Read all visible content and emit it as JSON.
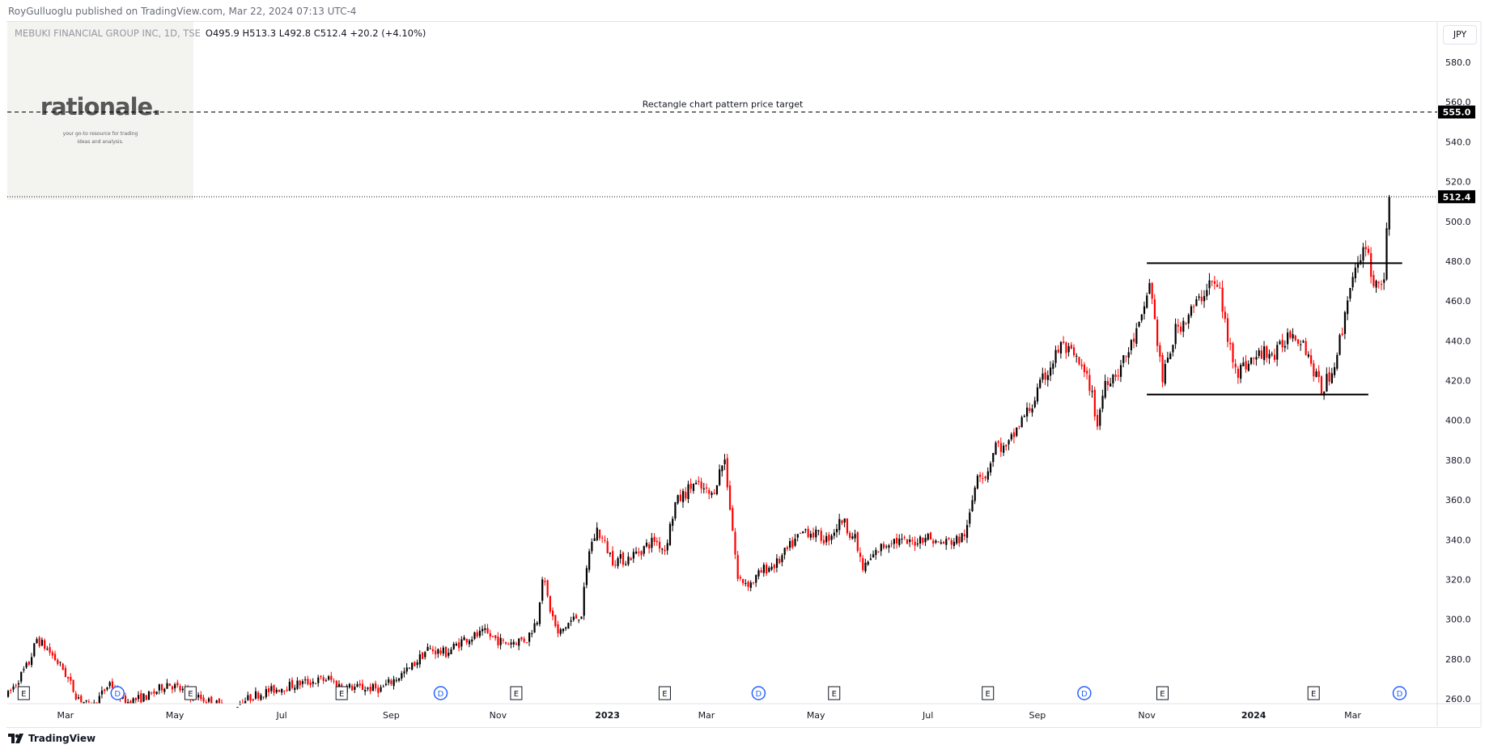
{
  "publisher": "RoyGulluoglu published on TradingView.com, Mar 22, 2024 07:13 UTC-4",
  "legend": {
    "symbol": "MEBUKI FINANCIAL GROUP INC, 1D, TSE",
    "ohlc": "O495.9  H513.3  L492.8  C512.4  +20.2 (+4.10%)"
  },
  "logo": {
    "name": "rationale.",
    "tagline1": "your go-to resource for trading",
    "tagline2": "ideas and analysis."
  },
  "currency": "JPY",
  "footer": {
    "brand": "TradingView",
    "icon": "tradingview-logo-icon"
  },
  "colors": {
    "up": "#000000",
    "down": "#ff0000",
    "annotation": "#000000"
  },
  "chart_data": {
    "type": "candlestick",
    "title": "MEBUKI FINANCIAL GROUP INC, 1D, TSE",
    "ylabel": "JPY",
    "ylim": [
      260,
      580
    ],
    "y_ticks": [
      "580.0",
      "560.0",
      "540.0",
      "520.0",
      "500.0",
      "480.0",
      "460.0",
      "440.0",
      "420.0",
      "400.0",
      "380.0",
      "360.0",
      "340.0",
      "320.0",
      "300.0",
      "280.0",
      "260.0"
    ],
    "x_ticks": [
      {
        "label": "Mar",
        "day": 22
      },
      {
        "label": "May",
        "day": 64
      },
      {
        "label": "Jul",
        "day": 105
      },
      {
        "label": "Sep",
        "day": 147
      },
      {
        "label": "Nov",
        "day": 188
      },
      {
        "label": "2023",
        "day": 230,
        "bold": true
      },
      {
        "label": "Mar",
        "day": 268
      },
      {
        "label": "May",
        "day": 310
      },
      {
        "label": "Jul",
        "day": 353
      },
      {
        "label": "Sep",
        "day": 395
      },
      {
        "label": "Nov",
        "day": 437
      },
      {
        "label": "2024",
        "day": 478,
        "bold": true
      },
      {
        "label": "Mar",
        "day": 516
      }
    ],
    "total_days": 530,
    "close_path": [
      [
        0,
        262
      ],
      [
        8,
        278
      ],
      [
        11,
        290
      ],
      [
        15,
        285
      ],
      [
        21,
        275
      ],
      [
        26,
        262
      ],
      [
        32,
        255
      ],
      [
        39,
        268
      ],
      [
        45,
        258
      ],
      [
        55,
        262
      ],
      [
        61,
        268
      ],
      [
        70,
        262
      ],
      [
        85,
        255
      ],
      [
        95,
        262
      ],
      [
        106,
        266
      ],
      [
        113,
        268
      ],
      [
        123,
        270
      ],
      [
        128,
        266
      ],
      [
        143,
        265
      ],
      [
        154,
        275
      ],
      [
        161,
        285
      ],
      [
        168,
        283
      ],
      [
        175,
        290
      ],
      [
        183,
        293
      ],
      [
        190,
        288
      ],
      [
        199,
        290
      ],
      [
        203,
        300
      ],
      [
        205,
        322
      ],
      [
        208,
        305
      ],
      [
        211,
        292
      ],
      [
        215,
        298
      ],
      [
        220,
        303
      ],
      [
        223,
        335
      ],
      [
        226,
        345
      ],
      [
        232,
        330
      ],
      [
        237,
        330
      ],
      [
        243,
        335
      ],
      [
        248,
        340
      ],
      [
        252,
        335
      ],
      [
        256,
        358
      ],
      [
        263,
        368
      ],
      [
        270,
        362
      ],
      [
        274,
        378
      ],
      [
        275,
        380
      ],
      [
        278,
        345
      ],
      [
        280,
        320
      ],
      [
        285,
        318
      ],
      [
        290,
        325
      ],
      [
        295,
        328
      ],
      [
        301,
        338
      ],
      [
        306,
        345
      ],
      [
        314,
        340
      ],
      [
        320,
        350
      ],
      [
        325,
        340
      ],
      [
        328,
        325
      ],
      [
        334,
        335
      ],
      [
        339,
        340
      ],
      [
        346,
        338
      ],
      [
        352,
        342
      ],
      [
        357,
        338
      ],
      [
        365,
        340
      ],
      [
        368,
        345
      ],
      [
        372,
        375
      ],
      [
        375,
        372
      ],
      [
        379,
        388
      ],
      [
        383,
        385
      ],
      [
        388,
        398
      ],
      [
        393,
        408
      ],
      [
        397,
        420
      ],
      [
        401,
        430
      ],
      [
        404,
        438
      ],
      [
        410,
        430
      ],
      [
        415,
        418
      ],
      [
        418,
        398
      ],
      [
        421,
        420
      ],
      [
        426,
        425
      ],
      [
        430,
        435
      ],
      [
        435,
        450
      ],
      [
        438,
        470
      ],
      [
        441,
        440
      ],
      [
        443,
        420
      ],
      [
        445,
        430
      ],
      [
        448,
        445
      ],
      [
        454,
        455
      ],
      [
        457,
        460
      ],
      [
        461,
        470
      ],
      [
        465,
        465
      ],
      [
        468,
        440
      ],
      [
        472,
        425
      ],
      [
        477,
        430
      ],
      [
        483,
        435
      ],
      [
        486,
        432
      ],
      [
        492,
        445
      ],
      [
        497,
        440
      ],
      [
        501,
        425
      ],
      [
        504,
        415
      ],
      [
        508,
        425
      ],
      [
        512,
        445
      ],
      [
        515,
        470
      ],
      [
        519,
        478
      ],
      [
        521,
        490
      ],
      [
        524,
        468
      ],
      [
        528,
        472
      ],
      [
        530,
        512.4
      ]
    ],
    "last_bar": {
      "open": 495.9,
      "high": 513.3,
      "low": 492.8,
      "close": 512.4,
      "change": 20.2,
      "change_pct": 4.1
    },
    "price_labels": [
      {
        "value": 555.0,
        "text": "555.0"
      },
      {
        "value": 512.4,
        "text": "512.4"
      }
    ],
    "annotations": {
      "target_line": {
        "price": 555.0,
        "style": "dashed",
        "label": "Rectangle chart pattern price target"
      },
      "rectangle_top": {
        "price": 479,
        "from_day": 437,
        "to_day": 535
      },
      "rectangle_bottom": {
        "price": 413,
        "from_day": 437,
        "to_day": 522
      },
      "last_price_line": {
        "price": 512.4,
        "style": "dotted"
      }
    },
    "events": [
      {
        "type": "E",
        "day": 6
      },
      {
        "type": "D",
        "day": 42
      },
      {
        "type": "E",
        "day": 70
      },
      {
        "type": "E",
        "day": 128
      },
      {
        "type": "D",
        "day": 166
      },
      {
        "type": "E",
        "day": 195
      },
      {
        "type": "E",
        "day": 252
      },
      {
        "type": "D",
        "day": 288
      },
      {
        "type": "E",
        "day": 317
      },
      {
        "type": "E",
        "day": 376
      },
      {
        "type": "D",
        "day": 413
      },
      {
        "type": "E",
        "day": 443
      },
      {
        "type": "E",
        "day": 501
      },
      {
        "type": "D",
        "day": 534
      }
    ]
  }
}
